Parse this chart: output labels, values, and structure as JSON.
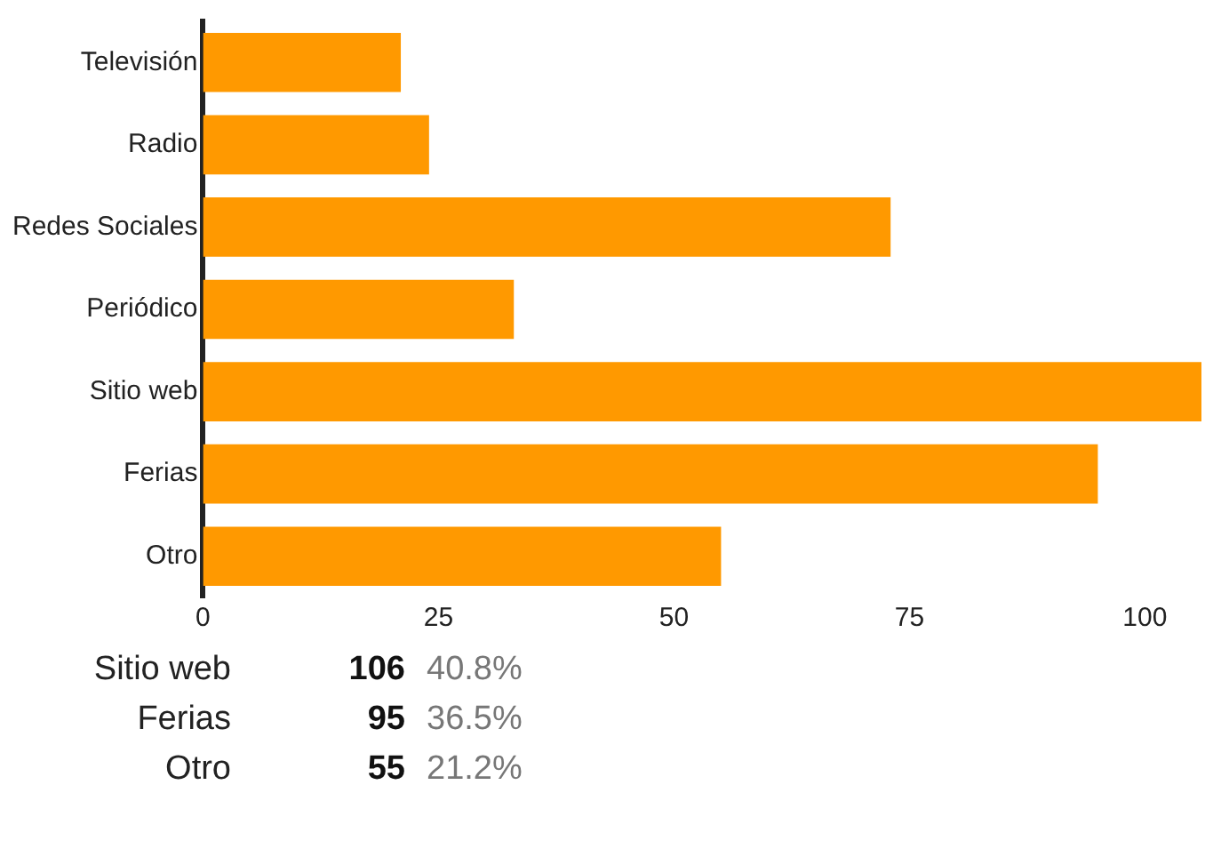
{
  "chart_data": {
    "type": "bar",
    "orientation": "horizontal",
    "categories": [
      "Televisión",
      "Radio",
      "Redes Sociales",
      "Periódico",
      "Sitio web",
      "Ferias",
      "Otro"
    ],
    "values": [
      21,
      24,
      73,
      33,
      106,
      95,
      55
    ],
    "color": "#ff9900",
    "xlim": [
      0,
      106
    ],
    "xticks": [
      0,
      25,
      50,
      75,
      100
    ],
    "grid": false,
    "legend": false,
    "annotations": [
      "Sitio web",
      "106",
      "40.8%",
      "Ferias",
      "95",
      "36.5%",
      "Otro",
      "55",
      "21.2%"
    ]
  }
}
